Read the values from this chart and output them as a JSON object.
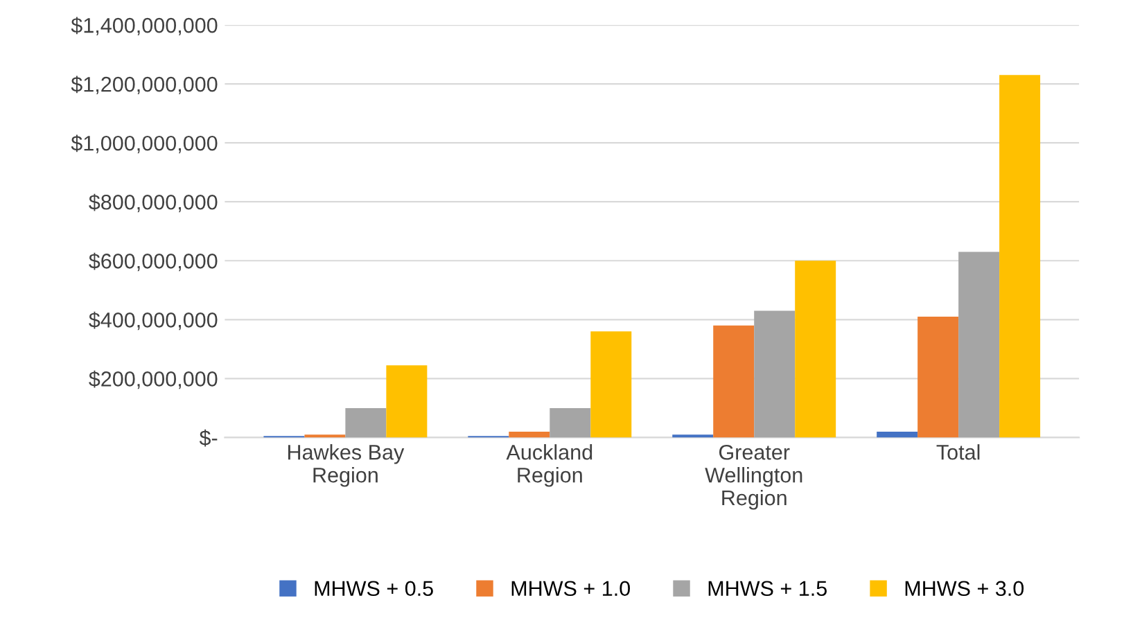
{
  "chart_data": {
    "type": "bar",
    "categories": [
      "Hawkes Bay\nRegion",
      "Auckland\nRegion",
      "Greater\nWellington\nRegion",
      "Total"
    ],
    "series": [
      {
        "name": "MHWS + 0.5",
        "color": "#4472c4",
        "values": [
          5000000,
          5000000,
          10000000,
          20000000
        ]
      },
      {
        "name": "MHWS + 1.0",
        "color": "#ed7d31",
        "values": [
          10000000,
          20000000,
          380000000,
          410000000
        ]
      },
      {
        "name": "MHWS + 1.5",
        "color": "#a5a5a5",
        "values": [
          100000000,
          100000000,
          430000000,
          630000000
        ]
      },
      {
        "name": "MHWS + 3.0",
        "color": "#ffc000",
        "values": [
          245000000,
          360000000,
          600000000,
          1230000000
        ]
      }
    ],
    "ylim": [
      0,
      1400000000
    ],
    "yticks": [
      {
        "value": 0,
        "label": "$-"
      },
      {
        "value": 200000000,
        "label": "$200,000,000"
      },
      {
        "value": 400000000,
        "label": "$400,000,000"
      },
      {
        "value": 600000000,
        "label": "$600,000,000"
      },
      {
        "value": 800000000,
        "label": "$800,000,000"
      },
      {
        "value": 1000000000,
        "label": "$1,000,000,000"
      },
      {
        "value": 1200000000,
        "label": "$1,200,000,000"
      },
      {
        "value": 1400000000,
        "label": "$1,400,000,000"
      }
    ],
    "grid": "y",
    "legend": "bottom"
  }
}
